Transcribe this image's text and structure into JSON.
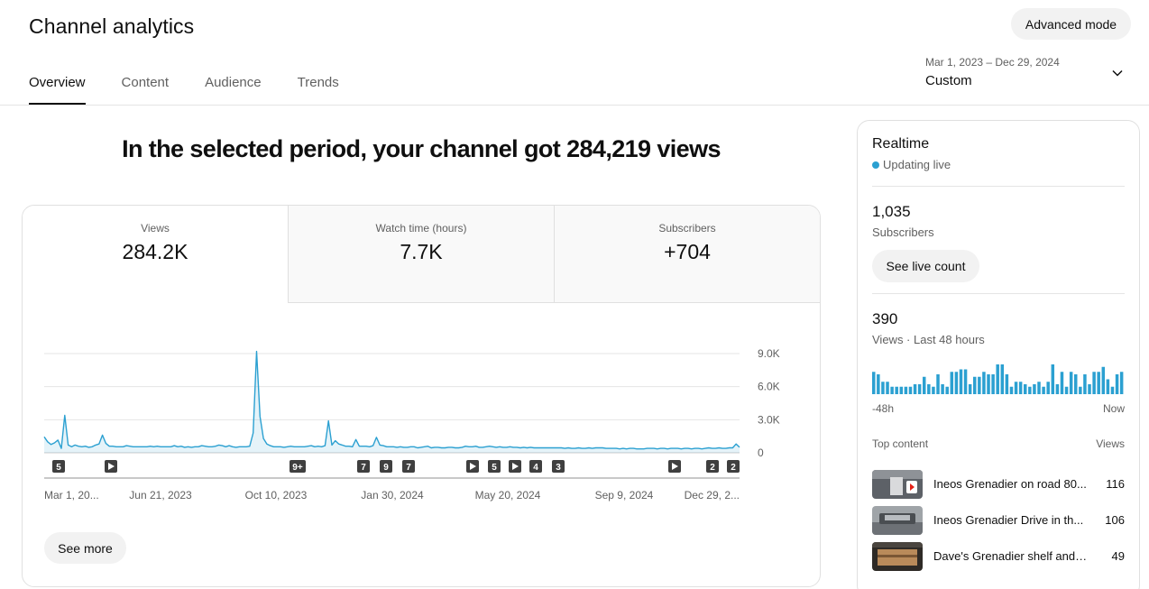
{
  "header": {
    "title": "Channel analytics",
    "advanced_mode": "Advanced mode",
    "tabs": [
      {
        "label": "Overview",
        "active": true
      },
      {
        "label": "Content",
        "active": false
      },
      {
        "label": "Audience",
        "active": false
      },
      {
        "label": "Trends",
        "active": false
      }
    ],
    "date_range": "Mar 1, 2023 – Dec 29, 2024",
    "date_label": "Custom",
    "dropdown_icon": "chevron-down-icon"
  },
  "summary": {
    "headline": "In the selected period, your channel got 284,219 views"
  },
  "metrics": [
    {
      "label": "Views",
      "value": "284.2K"
    },
    {
      "label": "Watch time (hours)",
      "value": "7.7K"
    },
    {
      "label": "Subscribers",
      "value": "+704"
    }
  ],
  "chart_data": {
    "type": "area",
    "series": [
      {
        "values": [
          1450,
          1000,
          750,
          900,
          1150,
          400,
          3400,
          700,
          550,
          700,
          600,
          550,
          600,
          500,
          550,
          700,
          800,
          1600,
          850,
          600,
          600,
          550,
          550,
          550,
          650,
          600,
          550,
          550,
          550,
          550,
          550,
          600,
          550,
          600,
          550,
          550,
          550,
          550,
          650,
          550,
          600,
          500,
          550,
          500,
          550,
          550,
          650,
          600,
          550,
          550,
          600,
          700,
          650,
          550,
          650,
          550,
          500,
          550,
          550,
          550,
          600,
          1800,
          9200,
          3300,
          1300,
          800,
          650,
          550,
          550,
          550,
          500,
          550,
          600,
          550,
          550,
          550,
          550,
          600,
          650,
          550,
          600,
          550,
          650,
          2900,
          700,
          1100,
          800,
          700,
          600,
          600,
          550,
          1200,
          600,
          600,
          600,
          550,
          650,
          1400,
          700,
          650,
          550,
          550,
          550,
          500,
          550,
          500,
          500,
          550,
          550,
          450,
          500,
          550,
          600,
          450,
          500,
          500,
          450,
          450,
          500,
          500,
          450,
          450,
          500,
          600,
          550,
          550,
          600,
          500,
          500,
          550,
          600,
          550,
          500,
          550,
          500,
          500,
          550,
          500,
          500,
          450,
          500,
          450,
          500,
          450,
          450,
          450,
          450,
          450,
          450,
          450,
          450,
          450,
          400,
          450,
          400,
          400,
          450,
          400,
          400,
          450,
          400,
          450,
          450,
          450,
          400,
          400,
          400,
          400,
          350,
          400,
          350,
          400,
          400,
          350,
          350,
          350,
          400,
          400,
          400,
          350,
          400,
          400,
          350,
          400,
          400,
          400,
          350,
          400,
          400,
          350,
          400,
          400,
          350,
          400,
          450,
          400,
          400,
          450,
          400,
          400,
          450,
          450,
          800,
          500
        ]
      }
    ],
    "x_ticks": [
      "Mar 1, 20...",
      "Jun 21, 2023",
      "Oct 10, 2023",
      "Jan 30, 2024",
      "May 20, 2024",
      "Sep 9, 2024",
      "Dec 29, 2..."
    ],
    "y_ticks": [
      "9.0K",
      "6.0K",
      "3.0K",
      "0"
    ],
    "ylim": [
      0,
      9000
    ],
    "grid": true,
    "markers": [
      {
        "label": "5",
        "type": "count"
      },
      {
        "label": "",
        "type": "play"
      },
      {
        "label": "9+",
        "type": "count"
      },
      {
        "label": "7",
        "type": "count"
      },
      {
        "label": "9",
        "type": "count"
      },
      {
        "label": "7",
        "type": "count"
      },
      {
        "label": "",
        "type": "play"
      },
      {
        "label": "5",
        "type": "count"
      },
      {
        "label": "",
        "type": "play"
      },
      {
        "label": "4",
        "type": "count"
      },
      {
        "label": "3",
        "type": "count"
      },
      {
        "label": "",
        "type": "play"
      },
      {
        "label": "2",
        "type": "count"
      },
      {
        "label": "2",
        "type": "count"
      }
    ],
    "color": "#2ba0d1"
  },
  "see_more": "See more",
  "realtime": {
    "title": "Realtime",
    "status": "Updating live",
    "subscribers_value": "1,035",
    "subscribers_label": "Subscribers",
    "see_live_count": "See live count",
    "views_value": "390",
    "views_label": "Views · Last 48 hours",
    "axis_start": "-48h",
    "axis_end": "Now",
    "hourly_views": [
      9,
      8,
      5,
      5,
      3,
      3,
      3,
      3,
      3,
      4,
      4,
      7,
      4,
      3,
      8,
      4,
      3,
      9,
      9,
      10,
      10,
      4,
      7,
      7,
      9,
      8,
      8,
      12,
      12,
      8,
      3,
      5,
      5,
      4,
      3,
      4,
      5,
      3,
      5,
      12,
      4,
      9,
      3,
      9,
      8,
      3,
      8,
      4,
      9,
      9,
      11,
      6,
      3,
      8,
      9
    ],
    "top_content_label": "Top content",
    "views_column_label": "Views",
    "top_content": [
      {
        "title": "Ineos Grenadier on road 80...",
        "views": "116"
      },
      {
        "title": "Ineos Grenadier Drive in th...",
        "views": "106"
      },
      {
        "title": "Dave's Grenadier shelf and d...",
        "views": "49"
      }
    ]
  }
}
